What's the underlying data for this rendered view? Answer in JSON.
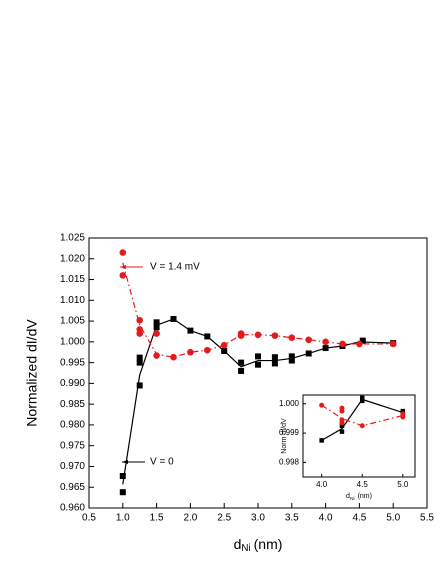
{
  "chart_data": [
    {
      "type": "scatter",
      "ylabel": "Normalized dI/dV",
      "xlabel": "d",
      "xlabel_sub": "Ni",
      "xlabel_unit": "(nm)",
      "xlim": [
        0.5,
        5.5
      ],
      "ylim": [
        0.96,
        1.025
      ],
      "xticks": [
        {
          "value": 0.5,
          "label": "0.5"
        },
        {
          "value": 1,
          "label": "1.0"
        },
        {
          "value": 1.5,
          "label": "1.5"
        },
        {
          "value": 2,
          "label": "2.0"
        },
        {
          "value": 2.5,
          "label": "2.5"
        },
        {
          "value": 3,
          "label": "3.0"
        },
        {
          "value": 3.5,
          "label": "3.5"
        },
        {
          "value": 4,
          "label": "4.0"
        },
        {
          "value": 4.5,
          "label": "4.5"
        },
        {
          "value": 5,
          "label": "5.0"
        },
        {
          "value": 5.5,
          "label": "5.5"
        }
      ],
      "yticks": [
        {
          "value": 0.96,
          "label": "0.960"
        },
        {
          "value": 0.965,
          "label": "0.965"
        },
        {
          "value": 0.97,
          "label": "0.970"
        },
        {
          "value": 0.975,
          "label": "0.975"
        },
        {
          "value": 0.98,
          "label": "0.980"
        },
        {
          "value": 0.985,
          "label": "0.985"
        },
        {
          "value": 0.99,
          "label": "0.990"
        },
        {
          "value": 0.995,
          "label": "0.995"
        },
        {
          "value": 1,
          "label": "1.000"
        },
        {
          "value": 1.005,
          "label": "1.005"
        },
        {
          "value": 1.01,
          "label": "1.010"
        },
        {
          "value": 1.015,
          "label": "1.015"
        },
        {
          "value": 1.02,
          "label": "1.020"
        },
        {
          "value": 1.025,
          "label": "1.025"
        }
      ],
      "annotations": [
        {
          "text": "V = 1.4 mV",
          "color": "#e41a1c"
        },
        {
          "text": "V = 0",
          "color": "#000000"
        }
      ],
      "series": [
        {
          "color": "#000000",
          "line": "solid",
          "x": [
            1,
            1.25,
            1.5,
            1.75,
            2,
            2.25,
            2.5,
            2.75,
            3,
            3.25,
            3.5,
            3.75,
            4,
            4.25,
            4.5,
            5
          ],
          "values": [
            0.9657,
            0.992,
            1.004,
            1.0055,
            1.0027,
            1.0013,
            0.9978,
            0.994,
            0.9955,
            0.9955,
            0.996,
            0.9972,
            0.9985,
            0.999,
            1.0,
            0.9997
          ]
        },
        {
          "color": "#e41a1c",
          "line": "dashdot",
          "x": [
            1,
            1.25,
            1.5,
            1.75,
            2,
            2.25,
            2.5,
            2.75,
            3,
            3.25,
            3.5,
            3.75,
            4,
            4.25,
            4.5,
            5
          ],
          "values": [
            1.019,
            1.004,
            0.997,
            0.9963,
            0.9975,
            0.998,
            0.9992,
            1.0017,
            1.0017,
            1.0015,
            1.001,
            1.0005,
            1.0,
            0.9995,
            0.9995,
            0.9995
          ]
        },
        {
          "color": "#000000",
          "marker": "square",
          "x": [
            1,
            1,
            1.25,
            1.25,
            1.25,
            1.5,
            1.5,
            1.75,
            2,
            2.25,
            2.5,
            2.75,
            2.75,
            3,
            3,
            3.25,
            3.25,
            3.5,
            3.5,
            3.75,
            4,
            4.25,
            4.55,
            5
          ],
          "values": [
            0.9638,
            0.9677,
            0.9895,
            0.995,
            0.9962,
            1.0035,
            1.0047,
            1.0055,
            1.0027,
            1.0013,
            0.9978,
            0.993,
            0.995,
            0.9945,
            0.9965,
            0.9948,
            0.9963,
            0.9955,
            0.9965,
            0.9972,
            0.9985,
            0.999,
            1.0003,
            0.9997
          ]
        },
        {
          "color": "#e41a1c",
          "marker": "circle",
          "x": [
            1,
            1,
            1.25,
            1.25,
            1.25,
            1.5,
            1.5,
            1.75,
            2,
            2.25,
            2.5,
            2.75,
            2.75,
            3,
            3.25,
            3.5,
            3.75,
            4,
            4.25,
            4.5,
            5
          ],
          "values": [
            1.0215,
            1.016,
            1.0052,
            1.003,
            1.002,
            1.002,
            0.9967,
            0.9963,
            0.9975,
            0.998,
            0.9992,
            1.0015,
            1.002,
            1.0017,
            1.0015,
            1.001,
            1.0005,
            1.0,
            0.9995,
            0.9995,
            0.9995
          ]
        }
      ]
    },
    {
      "type": "scatter",
      "ylabel": "Norm dI/dV",
      "xlabel": "d",
      "xlabel_sub": "Ni",
      "xlabel_unit": "(nm)",
      "xlim": [
        3.77,
        5.15
      ],
      "ylim": [
        0.9975,
        1.0003
      ],
      "xticks": [
        {
          "value": 4,
          "label": "4.0"
        },
        {
          "value": 4.5,
          "label": "4.5"
        },
        {
          "value": 5,
          "label": "5.0"
        }
      ],
      "yticks": [
        {
          "value": 0.998,
          "label": "0.998"
        },
        {
          "value": 0.999,
          "label": "0.999"
        },
        {
          "value": 1,
          "label": "1.000"
        }
      ],
      "series": [
        {
          "color": "#000000",
          "line": "solid",
          "x": [
            4,
            4.25,
            4.5,
            5
          ],
          "values": [
            0.99875,
            0.99915,
            1.00015,
            0.9997
          ]
        },
        {
          "color": "#e41a1c",
          "line": "dashdot",
          "x": [
            4,
            4.25,
            4.5,
            5
          ],
          "values": [
            0.99995,
            0.9995,
            0.99925,
            0.9996
          ]
        },
        {
          "color": "#000000",
          "marker": "square",
          "x": [
            4,
            4.25,
            4.25,
            4.5,
            4.5,
            5,
            5
          ],
          "values": [
            0.99875,
            0.99905,
            0.99925,
            1.0002,
            1.0001,
            0.99975,
            0.99965
          ]
        },
        {
          "color": "#e41a1c",
          "marker": "circle",
          "x": [
            4,
            4.25,
            4.25,
            4.25,
            4.25,
            4.5,
            5,
            5
          ],
          "values": [
            0.99995,
            0.99985,
            0.99975,
            0.99945,
            0.99935,
            0.99925,
            0.99965,
            0.99955
          ]
        }
      ]
    }
  ]
}
